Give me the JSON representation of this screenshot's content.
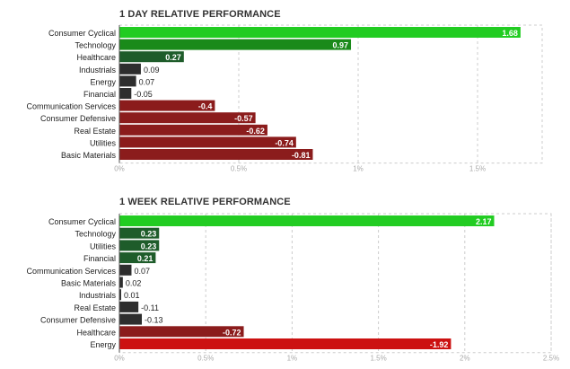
{
  "chart_data": [
    {
      "type": "bar",
      "orientation": "horizontal",
      "title": "1 DAY RELATIVE PERFORMANCE",
      "categories": [
        "Consumer Cyclical",
        "Technology",
        "Healthcare",
        "Industrials",
        "Energy",
        "Financial",
        "Communication Services",
        "Consumer Defensive",
        "Real Estate",
        "Utilities",
        "Basic Materials"
      ],
      "values": [
        1.68,
        0.97,
        0.27,
        0.09,
        0.07,
        -0.05,
        -0.4,
        -0.57,
        -0.62,
        -0.74,
        -0.81
      ],
      "value_labels": [
        "1.68",
        "0.97",
        "0.27",
        "0.09",
        "0.07",
        "-0.05",
        "-0.4",
        "-0.57",
        "-0.62",
        "-0.74",
        "-0.81"
      ],
      "xlim": [
        0,
        1.8
      ],
      "xticks": [
        0,
        0.5,
        1,
        1.5
      ],
      "xtick_labels": [
        "0%",
        "0.5%",
        "1%",
        "1.5%"
      ],
      "grid": true
    },
    {
      "type": "bar",
      "orientation": "horizontal",
      "title": "1 WEEK RELATIVE PERFORMANCE",
      "categories": [
        "Consumer Cyclical",
        "Technology",
        "Utilities",
        "Financial",
        "Communication Services",
        "Basic Materials",
        "Industrials",
        "Real Estate",
        "Consumer Defensive",
        "Healthcare",
        "Energy"
      ],
      "values": [
        2.17,
        0.23,
        0.23,
        0.21,
        0.07,
        0.02,
        0.01,
        -0.11,
        -0.13,
        -0.72,
        -1.92
      ],
      "value_labels": [
        "2.17",
        "0.23",
        "0.23",
        "0.21",
        "0.07",
        "0.02",
        "0.01",
        "-0.11",
        "-0.13",
        "-0.72",
        "-1.92"
      ],
      "xlim": [
        0,
        2.5
      ],
      "xticks": [
        0,
        0.5,
        1,
        1.5,
        2,
        2.5
      ],
      "xtick_labels": [
        "0%",
        "0.5%",
        "1%",
        "1.5%",
        "2%",
        "2.5%"
      ],
      "grid": true
    }
  ],
  "colors": {
    "positive_strong": "#22cc22",
    "positive_mid": "#1a8a1a",
    "positive_dark": "#1e5c2a",
    "neutral_dark": "#2e2e2e",
    "negative_dark": "#5a1a1a",
    "negative_mid": "#8b1c1c",
    "negative_strong": "#cc1111"
  }
}
